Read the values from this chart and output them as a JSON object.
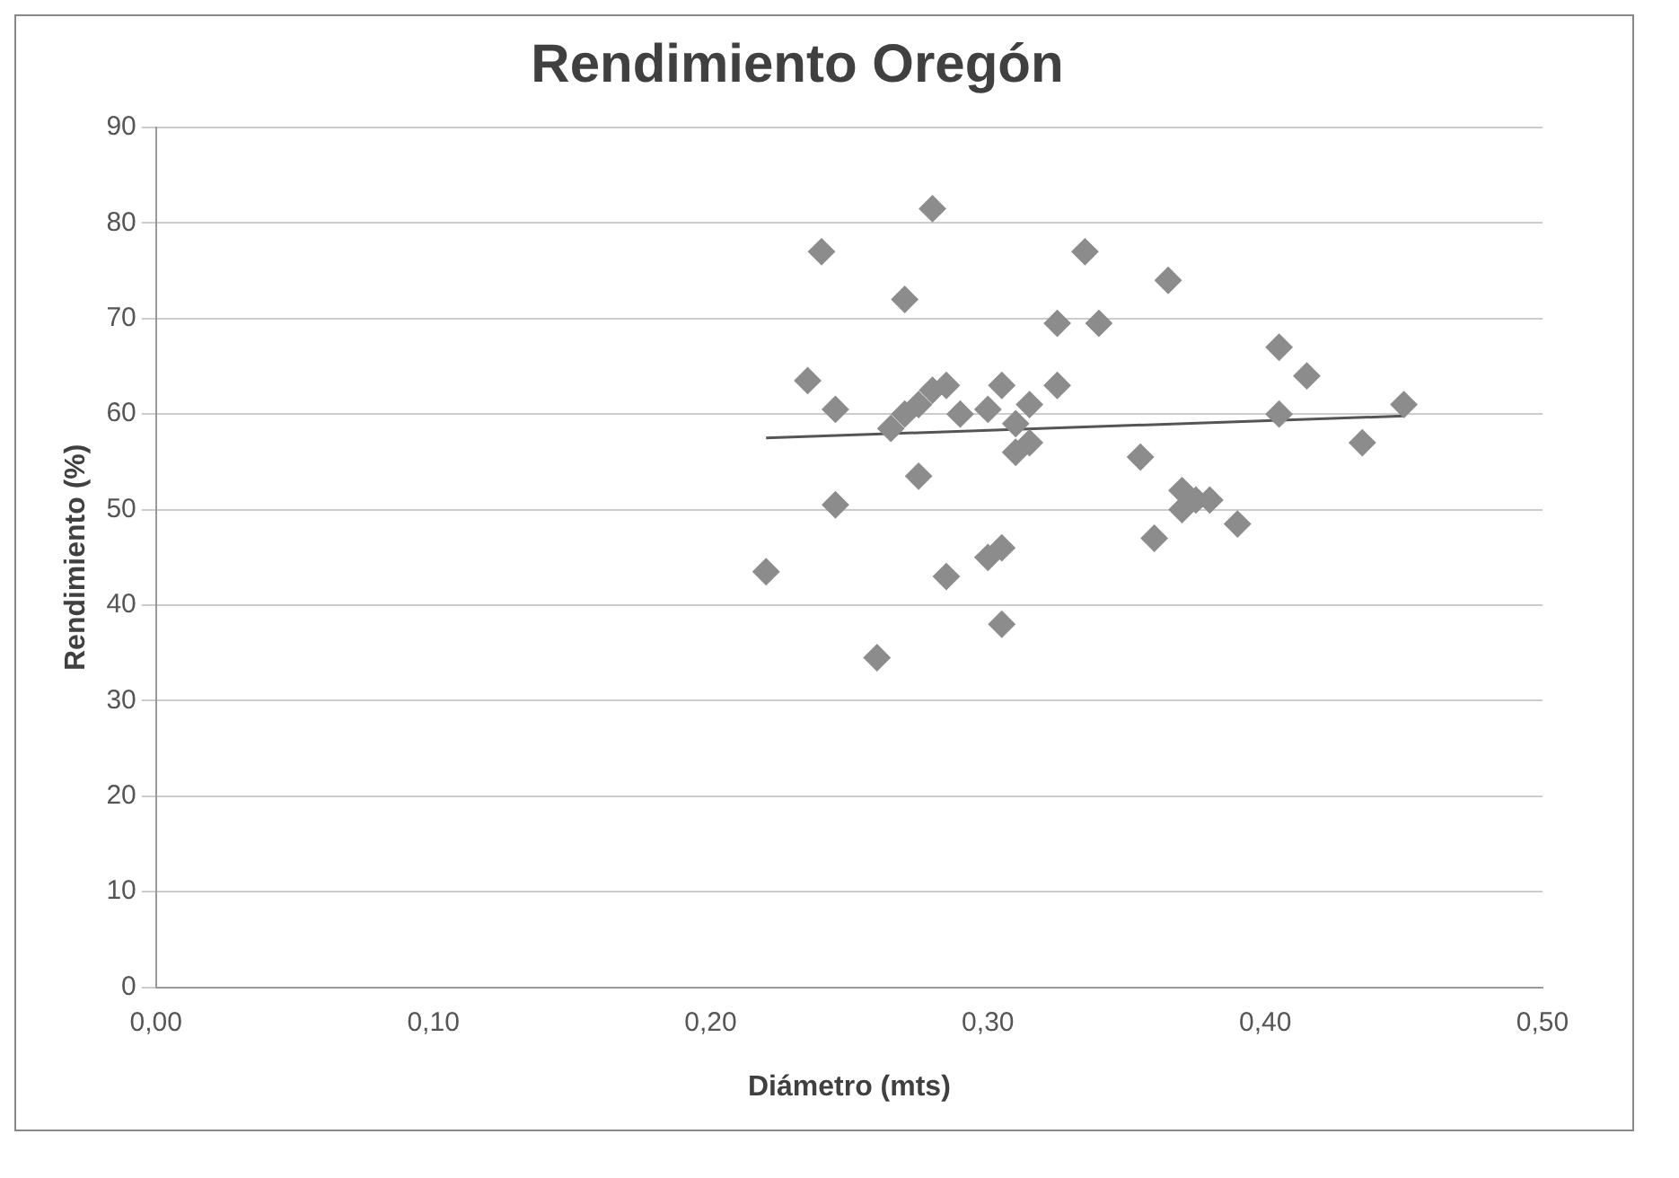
{
  "chart_data": {
    "type": "scatter",
    "title": "Rendimiento Oregón",
    "xlabel": "Diámetro (mts)",
    "ylabel": "Rendimiento (%)",
    "xlim": [
      0,
      0.5
    ],
    "xticks": [
      {
        "value": 0,
        "label": "0,00"
      },
      {
        "value": 0.1,
        "label": "0,10"
      },
      {
        "value": 0.2,
        "label": "0,20"
      },
      {
        "value": 0.3,
        "label": "0,30"
      },
      {
        "value": 0.4,
        "label": "0,40"
      },
      {
        "value": 0.5,
        "label": "0,50"
      }
    ],
    "ylim": [
      0,
      90
    ],
    "yticks": [
      0,
      10,
      20,
      30,
      40,
      50,
      60,
      70,
      80,
      90
    ],
    "grid": "y",
    "legend": false,
    "series": [
      {
        "marker": "diamond",
        "color": "#8c8c8c",
        "x": [
          0.22,
          0.235,
          0.24,
          0.245,
          0.245,
          0.26,
          0.265,
          0.27,
          0.27,
          0.275,
          0.275,
          0.28,
          0.28,
          0.285,
          0.285,
          0.29,
          0.3,
          0.3,
          0.305,
          0.305,
          0.305,
          0.31,
          0.31,
          0.315,
          0.315,
          0.325,
          0.325,
          0.335,
          0.34,
          0.355,
          0.36,
          0.365,
          0.37,
          0.37,
          0.375,
          0.38,
          0.39,
          0.405,
          0.405,
          0.415,
          0.435,
          0.45
        ],
        "values": [
          43.5,
          63.5,
          77,
          60.5,
          50.5,
          34.5,
          58.5,
          60,
          72,
          61,
          53.5,
          81.5,
          62.5,
          63,
          43,
          60,
          60.5,
          45,
          63,
          46,
          38,
          59,
          56,
          57,
          61,
          69.5,
          63,
          77,
          69.5,
          55.5,
          47,
          74,
          52,
          50,
          51,
          51,
          48.5,
          67,
          60,
          64,
          57,
          61
        ]
      },
      {
        "type": "line",
        "marker": "none",
        "color": "#555555",
        "x": [
          0.22,
          0.45
        ],
        "values": [
          57.5,
          59.8
        ]
      }
    ]
  }
}
